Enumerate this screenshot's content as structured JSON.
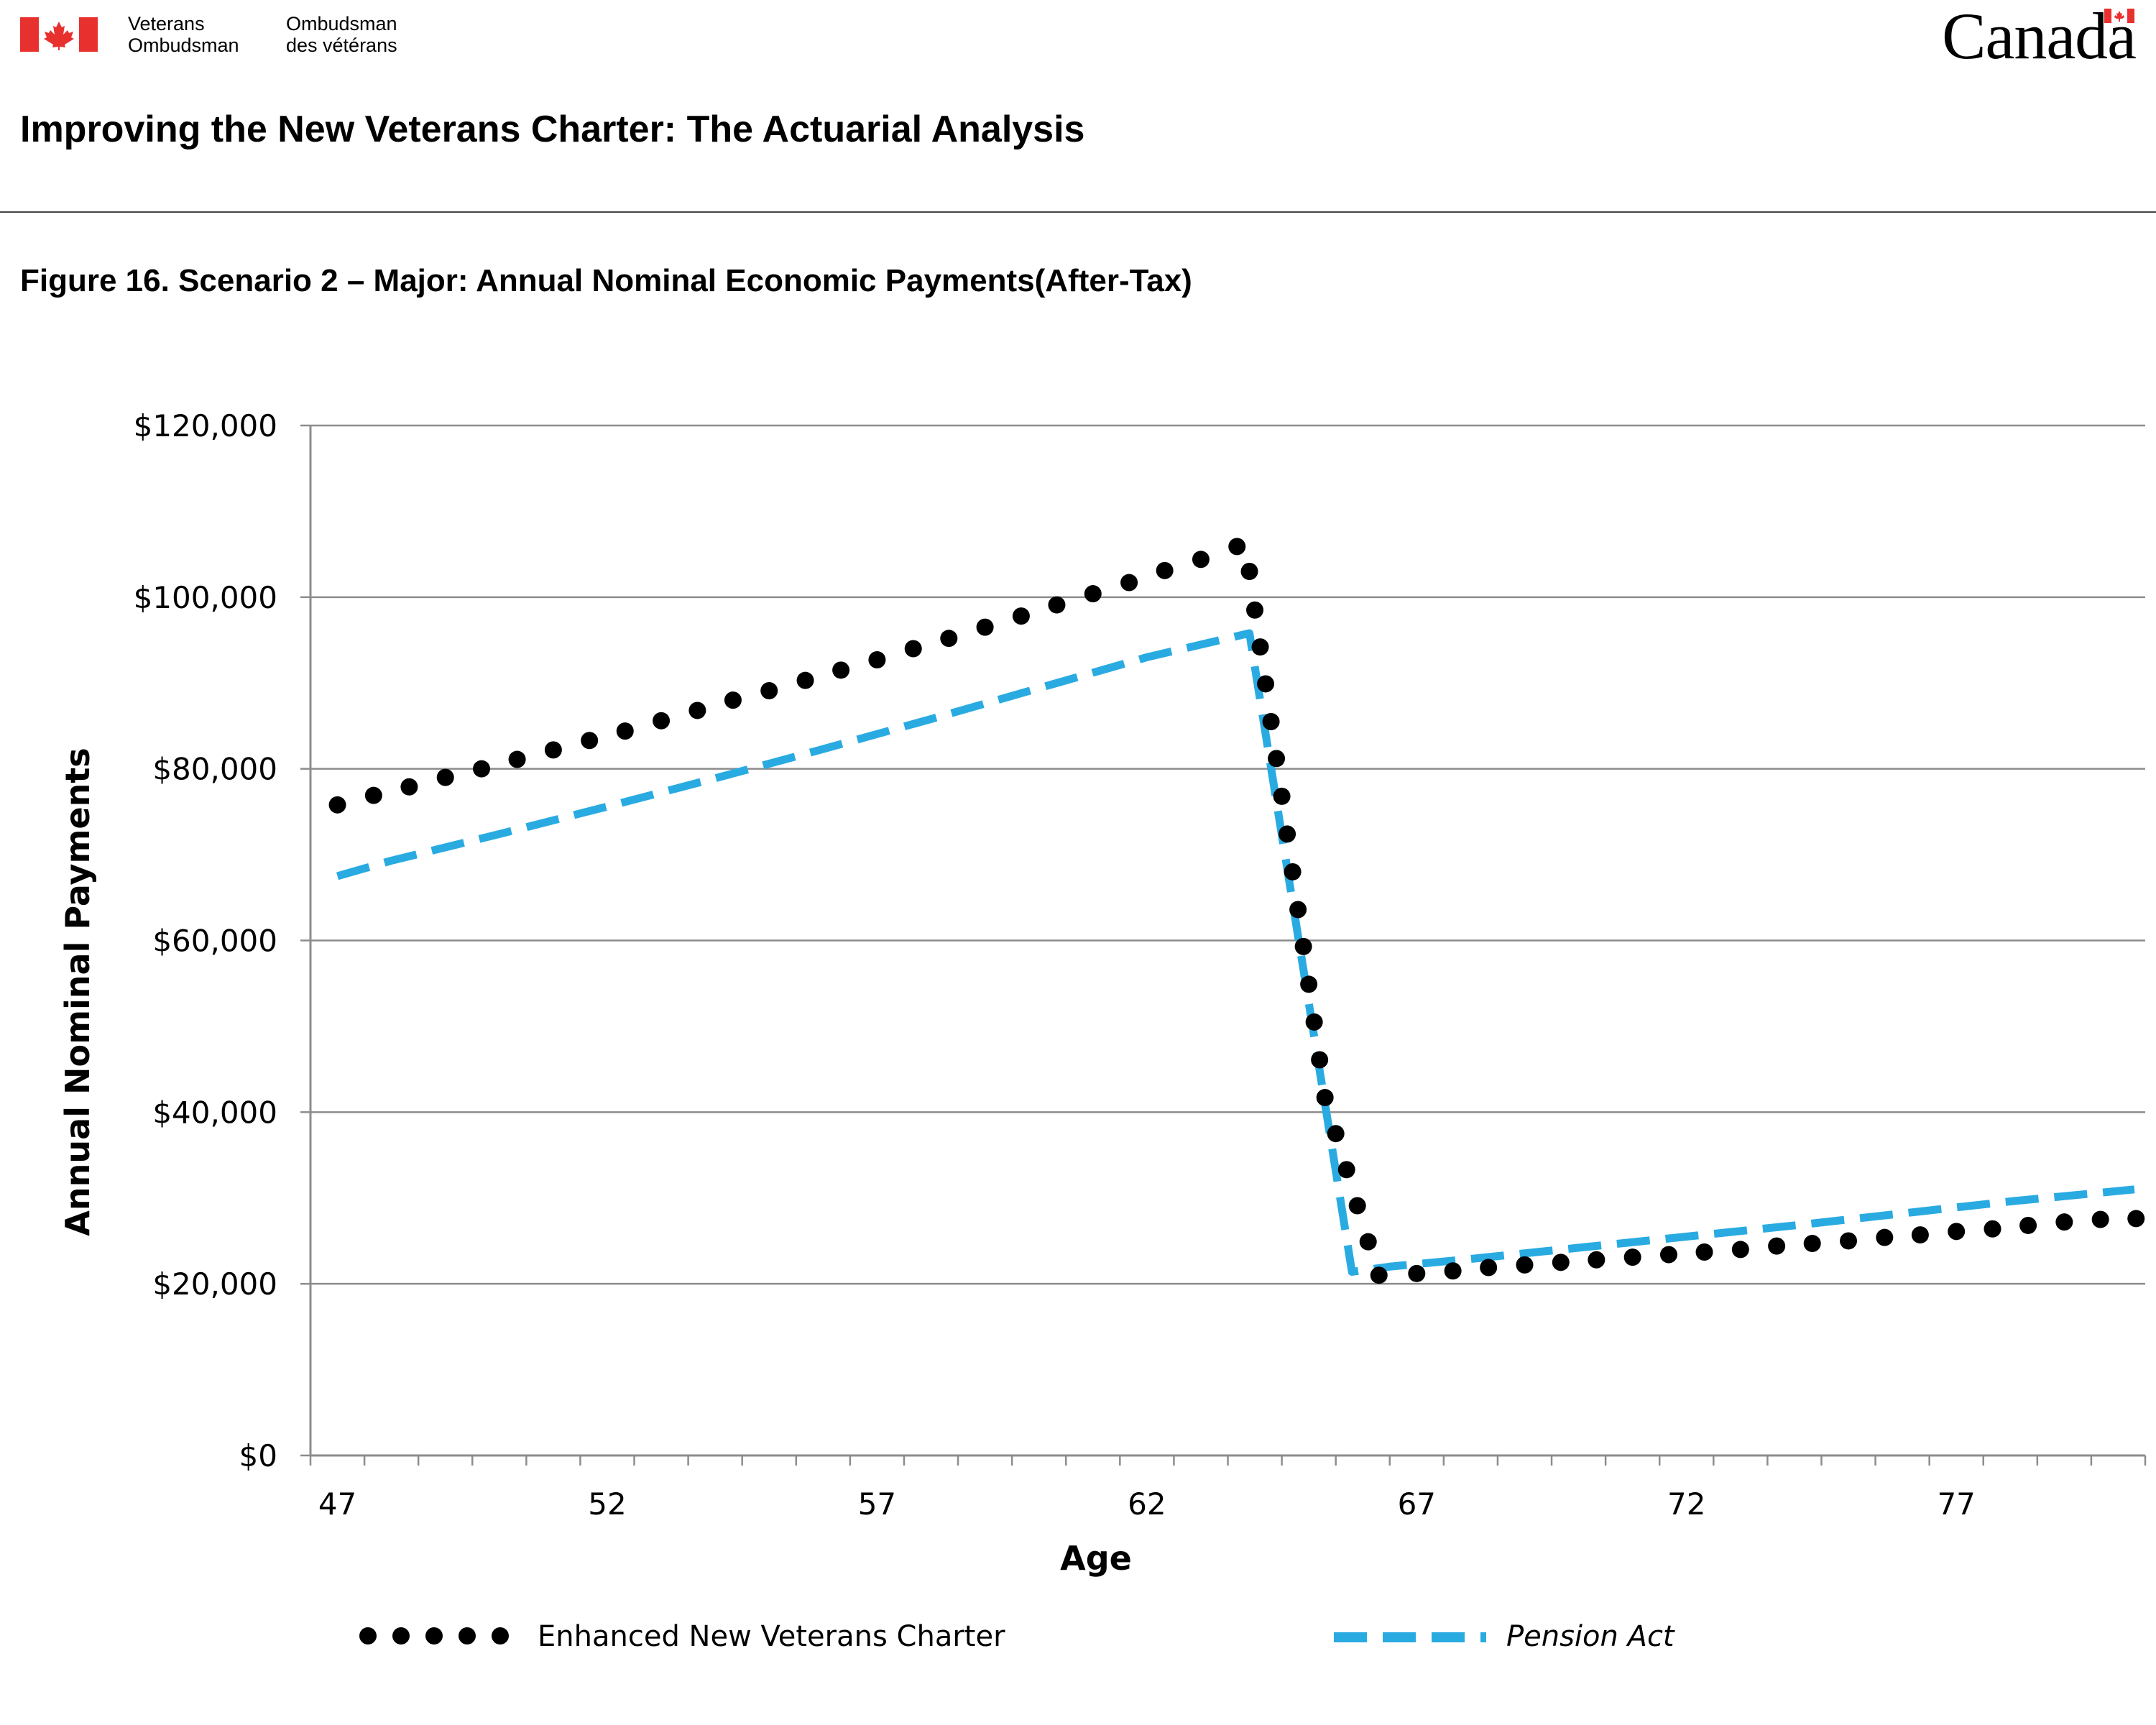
{
  "header": {
    "org_en_line1": "Veterans",
    "org_en_line2": "Ombudsman",
    "org_fr_line1": "Ombudsman",
    "org_fr_line2": "des vétérans",
    "wordmark": "Canada",
    "flag_color": "#e8312f"
  },
  "report_title": "Improving the New Veterans Charter: The Actuarial Analysis",
  "figure_title": "Figure 16. Scenario 2 – Major: Annual Nominal Economic Payments(After-Tax)",
  "chart_data": {
    "type": "line",
    "xlabel": "Age",
    "ylabel": "Annual Nominal Payments",
    "ylim": [
      0,
      120000
    ],
    "xlim": [
      46.5,
      80.5
    ],
    "y_ticks": [
      0,
      20000,
      40000,
      60000,
      80000,
      100000,
      120000
    ],
    "y_tick_labels": [
      "$0",
      "$20,000",
      "$40,000",
      "$60,000",
      "$80,000",
      "$100,000",
      "$120,000"
    ],
    "x_tick_labels": [
      {
        "age": 47,
        "label": "47"
      },
      {
        "age": 52,
        "label": "52"
      },
      {
        "age": 57,
        "label": "57"
      },
      {
        "age": 62,
        "label": "62"
      },
      {
        "age": 67,
        "label": "67"
      },
      {
        "age": 72,
        "label": "72"
      },
      {
        "age": 77,
        "label": "77"
      }
    ],
    "grid": "horizontal",
    "legend_position": "bottom",
    "series": [
      {
        "name": "Enhanced New Veterans Charter",
        "style": "dotted",
        "color": "#000000",
        "points": [
          [
            47.0,
            75800
          ],
          [
            47.67,
            76900
          ],
          [
            48.33,
            77900
          ],
          [
            49.0,
            79000
          ],
          [
            49.67,
            80000
          ],
          [
            50.33,
            81100
          ],
          [
            51.0,
            82200
          ],
          [
            51.67,
            83300
          ],
          [
            52.33,
            84400
          ],
          [
            53.0,
            85600
          ],
          [
            53.67,
            86800
          ],
          [
            54.33,
            88000
          ],
          [
            55.0,
            89100
          ],
          [
            55.67,
            90300
          ],
          [
            56.33,
            91500
          ],
          [
            57.0,
            92700
          ],
          [
            57.67,
            94000
          ],
          [
            58.33,
            95200
          ],
          [
            59.0,
            96500
          ],
          [
            59.67,
            97800
          ],
          [
            60.33,
            99100
          ],
          [
            61.0,
            100400
          ],
          [
            61.67,
            101700
          ],
          [
            62.33,
            103100
          ],
          [
            63.0,
            104400
          ],
          [
            63.67,
            105900
          ],
          [
            63.9,
            103000
          ],
          [
            64.0,
            98500
          ],
          [
            64.1,
            94200
          ],
          [
            64.2,
            89900
          ],
          [
            64.3,
            85500
          ],
          [
            64.4,
            81200
          ],
          [
            64.5,
            76800
          ],
          [
            64.6,
            72400
          ],
          [
            64.7,
            68000
          ],
          [
            64.8,
            63600
          ],
          [
            64.9,
            59300
          ],
          [
            65.0,
            54900
          ],
          [
            65.1,
            50500
          ],
          [
            65.2,
            46100
          ],
          [
            65.3,
            41700
          ],
          [
            65.5,
            37500
          ],
          [
            65.7,
            33300
          ],
          [
            65.9,
            29100
          ],
          [
            66.1,
            24900
          ],
          [
            66.3,
            21000
          ],
          [
            67.0,
            21200
          ],
          [
            67.67,
            21500
          ],
          [
            68.33,
            21900
          ],
          [
            69.0,
            22200
          ],
          [
            69.67,
            22500
          ],
          [
            70.33,
            22800
          ],
          [
            71.0,
            23100
          ],
          [
            71.67,
            23400
          ],
          [
            72.33,
            23700
          ],
          [
            73.0,
            24000
          ],
          [
            73.67,
            24400
          ],
          [
            74.33,
            24700
          ],
          [
            75.0,
            25000
          ],
          [
            75.67,
            25400
          ],
          [
            76.33,
            25700
          ],
          [
            77.0,
            26100
          ],
          [
            77.67,
            26400
          ],
          [
            78.33,
            26800
          ],
          [
            79.0,
            27200
          ],
          [
            79.67,
            27500
          ],
          [
            80.33,
            27600
          ]
        ]
      },
      {
        "name": "Pension Act",
        "style": "dashed",
        "color": "#29abe2",
        "points": [
          [
            47.0,
            67500
          ],
          [
            48.0,
            69300
          ],
          [
            50.0,
            72400
          ],
          [
            52.0,
            75600
          ],
          [
            54.0,
            78900
          ],
          [
            56.0,
            82300
          ],
          [
            58.0,
            85800
          ],
          [
            60.0,
            89400
          ],
          [
            62.0,
            93000
          ],
          [
            63.9,
            95800
          ],
          [
            65.8,
            21400
          ],
          [
            66.5,
            22000
          ],
          [
            68.0,
            22900
          ],
          [
            70.0,
            24200
          ],
          [
            72.0,
            25500
          ],
          [
            74.0,
            26800
          ],
          [
            76.0,
            28200
          ],
          [
            78.0,
            29600
          ],
          [
            80.3,
            31000
          ]
        ]
      }
    ]
  }
}
